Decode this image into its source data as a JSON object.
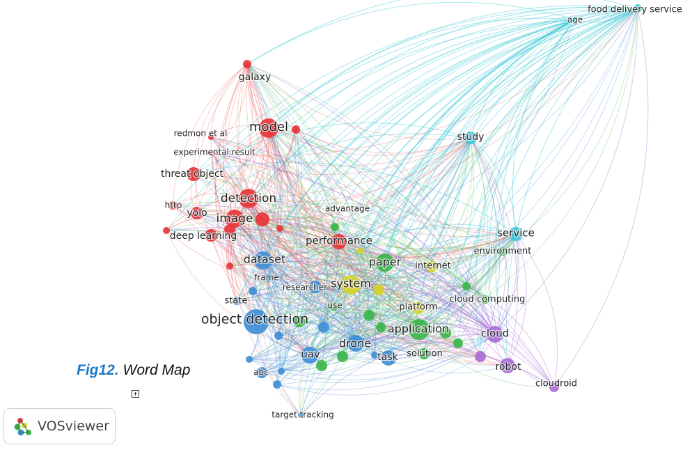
{
  "caption": {
    "fig": "Fig12.",
    "title": "Word Map"
  },
  "branding": {
    "name": "VOSviewer",
    "logo_icon": "vosviewer-logo-icon"
  },
  "controls": {
    "expand_icon": "expand-plus-icon"
  },
  "clusters": {
    "red": "#e8353a",
    "green": "#3bb54a",
    "blue": "#3f8fd6",
    "yellow": "#d6d12f",
    "cyan": "#3ec8d8",
    "purple": "#a86ed6"
  },
  "nodes": [
    {
      "id": "galaxy",
      "label": "galaxy",
      "cluster": "red"
    },
    {
      "id": "model",
      "label": "model",
      "cluster": "red"
    },
    {
      "id": "redmon",
      "label": "redmon et al",
      "cluster": "red"
    },
    {
      "id": "exp",
      "label": "experimental result",
      "cluster": "red"
    },
    {
      "id": "threat",
      "label": "threat object",
      "cluster": "red"
    },
    {
      "id": "detection",
      "label": "detection",
      "cluster": "red"
    },
    {
      "id": "http",
      "label": "http",
      "cluster": "red"
    },
    {
      "id": "yolo",
      "label": "yolo",
      "cluster": "red"
    },
    {
      "id": "image",
      "label": "image",
      "cluster": "red"
    },
    {
      "id": "deep",
      "label": "deep learning",
      "cluster": "red"
    },
    {
      "id": "performance",
      "label": "performance",
      "cluster": "red"
    },
    {
      "id": "r1",
      "label": "",
      "cluster": "red"
    },
    {
      "id": "r2",
      "label": "",
      "cluster": "red"
    },
    {
      "id": "r3",
      "label": "",
      "cluster": "red"
    },
    {
      "id": "r4",
      "label": "",
      "cluster": "red"
    },
    {
      "id": "r5",
      "label": "",
      "cluster": "red"
    },
    {
      "id": "r6",
      "label": "",
      "cluster": "red"
    },
    {
      "id": "dataset",
      "label": "dataset",
      "cluster": "blue"
    },
    {
      "id": "frame",
      "label": "frame",
      "cluster": "blue"
    },
    {
      "id": "state",
      "label": "state",
      "cluster": "blue"
    },
    {
      "id": "od",
      "label": "object detection",
      "cluster": "blue"
    },
    {
      "id": "uav",
      "label": "uav",
      "cluster": "blue"
    },
    {
      "id": "abc",
      "label": "abc",
      "cluster": "blue"
    },
    {
      "id": "target",
      "label": "target tracking",
      "cluster": "blue"
    },
    {
      "id": "drone",
      "label": "drone",
      "cluster": "blue"
    },
    {
      "id": "task",
      "label": "task",
      "cluster": "blue"
    },
    {
      "id": "researcher",
      "label": "researcher",
      "cluster": "blue"
    },
    {
      "id": "b1",
      "label": "",
      "cluster": "blue"
    },
    {
      "id": "b2",
      "label": "",
      "cluster": "blue"
    },
    {
      "id": "b3",
      "label": "",
      "cluster": "blue"
    },
    {
      "id": "b4",
      "label": "",
      "cluster": "blue"
    },
    {
      "id": "b5",
      "label": "",
      "cluster": "blue"
    },
    {
      "id": "b6",
      "label": "",
      "cluster": "blue"
    },
    {
      "id": "b7",
      "label": "",
      "cluster": "blue"
    },
    {
      "id": "paper",
      "label": "paper",
      "cluster": "green"
    },
    {
      "id": "advantage",
      "label": "advantage",
      "cluster": "green"
    },
    {
      "id": "application",
      "label": "application",
      "cluster": "green"
    },
    {
      "id": "solution",
      "label": "solution",
      "cluster": "green"
    },
    {
      "id": "cloudcomp",
      "label": "cloud computing",
      "cluster": "green"
    },
    {
      "id": "environment",
      "label": "environment",
      "cluster": "green"
    },
    {
      "id": "use",
      "label": "use",
      "cluster": "green"
    },
    {
      "id": "g1",
      "label": "",
      "cluster": "green"
    },
    {
      "id": "g2",
      "label": "",
      "cluster": "green"
    },
    {
      "id": "g3",
      "label": "",
      "cluster": "green"
    },
    {
      "id": "g4",
      "label": "",
      "cluster": "green"
    },
    {
      "id": "g5",
      "label": "",
      "cluster": "green"
    },
    {
      "id": "g6",
      "label": "",
      "cluster": "green"
    },
    {
      "id": "g7",
      "label": "",
      "cluster": "green"
    },
    {
      "id": "g8",
      "label": "",
      "cluster": "green"
    },
    {
      "id": "system",
      "label": "system",
      "cluster": "yellow"
    },
    {
      "id": "internet",
      "label": "internet",
      "cluster": "yellow"
    },
    {
      "id": "platform",
      "label": "platform",
      "cluster": "yellow"
    },
    {
      "id": "y1",
      "label": "",
      "cluster": "yellow"
    },
    {
      "id": "y2",
      "label": "",
      "cluster": "yellow"
    },
    {
      "id": "study",
      "label": "study",
      "cluster": "cyan"
    },
    {
      "id": "service",
      "label": "service",
      "cluster": "cyan"
    },
    {
      "id": "food",
      "label": "food delivery service",
      "cluster": "cyan"
    },
    {
      "id": "age",
      "label": "age",
      "cluster": "cyan"
    },
    {
      "id": "cloud",
      "label": "cloud",
      "cluster": "purple"
    },
    {
      "id": "robot",
      "label": "robot",
      "cluster": "purple"
    },
    {
      "id": "cloudroid",
      "label": "cloudroid",
      "cluster": "purple"
    },
    {
      "id": "p1",
      "label": "",
      "cluster": "purple"
    }
  ]
}
